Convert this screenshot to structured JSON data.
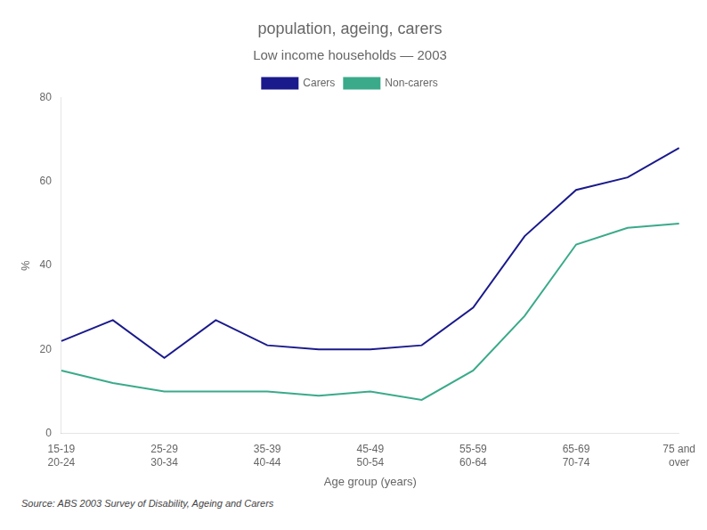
{
  "chart_data": {
    "type": "line",
    "title": "population, ageing, carers",
    "subtitle": "Low income households — 2003",
    "source": "Source: ABS 2003 Survey of Disability, Ageing and Carers",
    "xlabel": "Age group (years)",
    "ylabel": "%",
    "categories": [
      [
        "15-19",
        "20-24"
      ],
      null,
      [
        "25-29",
        "30-34"
      ],
      null,
      [
        "35-39",
        "40-44"
      ],
      null,
      [
        "45-49",
        "50-54"
      ],
      null,
      [
        "55-59",
        "60-64"
      ],
      null,
      [
        "65-69",
        "70-74"
      ],
      null,
      [
        "75 and",
        "over"
      ]
    ],
    "series": [
      {
        "name": "Carers",
        "color": "#1a1a8c",
        "values": [
          22,
          27,
          18,
          27,
          21,
          20,
          20,
          21,
          30,
          47,
          58,
          61,
          68
        ]
      },
      {
        "name": "Non-carers",
        "color": "#3aaa8a",
        "values": [
          15,
          12,
          10,
          10,
          10,
          9,
          10,
          8,
          15,
          28,
          45,
          49,
          50
        ]
      }
    ],
    "ylim": [
      0,
      80
    ],
    "yticks": [
      0,
      20,
      40,
      60,
      80
    ],
    "grid": false,
    "legend": "top"
  }
}
